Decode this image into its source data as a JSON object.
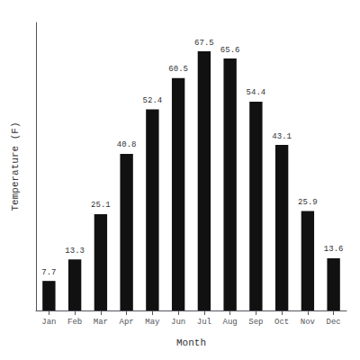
{
  "chart_data": {
    "type": "bar",
    "categories": [
      "Jan",
      "Feb",
      "Mar",
      "Apr",
      "May",
      "Jun",
      "Jul",
      "Aug",
      "Sep",
      "Oct",
      "Nov",
      "Dec"
    ],
    "values": [
      7.7,
      13.3,
      25.1,
      40.8,
      52.4,
      60.5,
      67.5,
      65.6,
      54.4,
      43.1,
      25.9,
      13.6
    ],
    "color": "#111111",
    "xlabel": "Month",
    "ylabel": "Temperature (F)",
    "ylim": [
      0,
      75
    ],
    "data_labels": true,
    "tick_labels": "x",
    "grid": false
  }
}
